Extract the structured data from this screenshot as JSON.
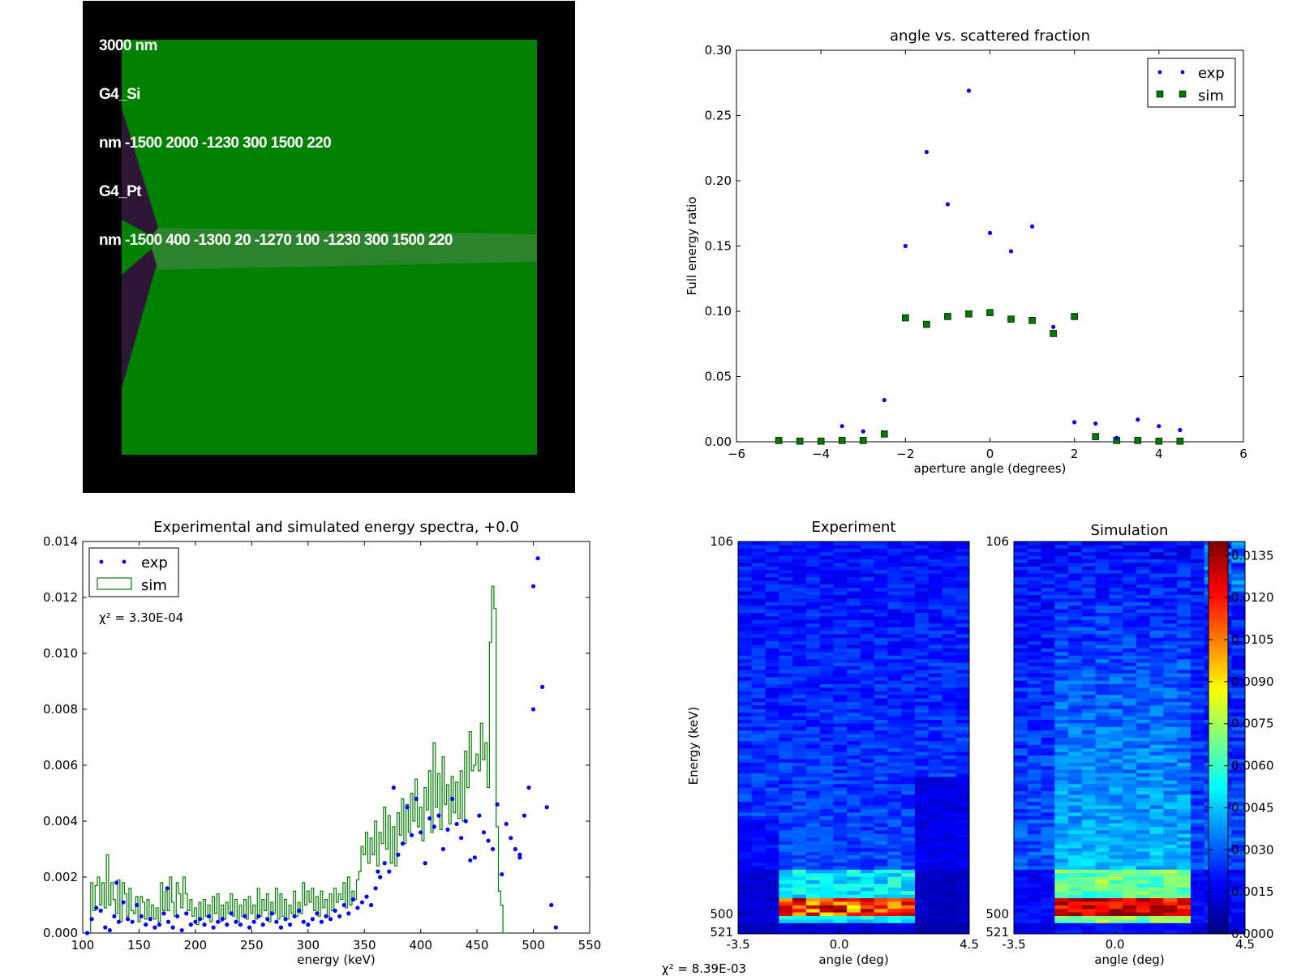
{
  "geometry_view": {
    "lines": [
      "3000 nm",
      "G4_Si",
      "nm -1500 2000 -1230 300 1500 220",
      "G4_Pt",
      "nm -1500 400 -1300 20 -1270 100 -1230 300 1500 220"
    ],
    "colors": {
      "background": "#000000",
      "silicon": "#008000",
      "platinum": "#2e1636",
      "beam": "#2b832b"
    }
  },
  "chi2_overall": "χ² = 8.39E-03",
  "chart_data": [
    {
      "id": "angle-scatter",
      "type": "scatter",
      "title": "angle vs. scattered fraction",
      "xlabel": "aperture angle (degrees)",
      "ylabel": "Full energy ratio",
      "xlim": [
        -6,
        6
      ],
      "ylim": [
        0,
        0.3
      ],
      "xticks": [
        "−6",
        "−4",
        "−2",
        "0",
        "2",
        "4",
        "6"
      ],
      "yticks": [
        "0.00",
        "0.05",
        "0.10",
        "0.15",
        "0.20",
        "0.25",
        "0.30"
      ],
      "legend": {
        "placement": "top-right",
        "entries": [
          "exp",
          "sim"
        ]
      },
      "grid": false,
      "series": [
        {
          "name": "exp",
          "marker": "dot",
          "color": "#0000ff",
          "x": [
            -3.5,
            -3,
            -2.5,
            -2,
            -1.5,
            -1,
            -0.5,
            0,
            0.5,
            1,
            1.5,
            2,
            2.5,
            3,
            3.5,
            4,
            4.5
          ],
          "y": [
            0.012,
            0.008,
            0.032,
            0.15,
            0.222,
            0.182,
            0.269,
            0.16,
            0.146,
            0.165,
            0.088,
            0.015,
            0.014,
            0.003,
            0.017,
            0.012,
            0.009
          ]
        },
        {
          "name": "sim",
          "marker": "square",
          "color": "#007700",
          "x": [
            -5,
            -4.5,
            -4,
            -3.5,
            -3,
            -2.5,
            -2,
            -1.5,
            -1,
            -0.5,
            0,
            0.5,
            1,
            1.5,
            2,
            2.5,
            3,
            3.5,
            4,
            4.5
          ],
          "y": [
            0.001,
            0.0005,
            0.0005,
            0.001,
            0.001,
            0.006,
            0.095,
            0.09,
            0.096,
            0.098,
            0.099,
            0.094,
            0.093,
            0.083,
            0.096,
            0.004,
            0.001,
            0.001,
            0.0005,
            0.0005
          ]
        }
      ]
    },
    {
      "id": "energy-spectra",
      "type": "line",
      "title": "Experimental and simulated energy spectra, +0.0",
      "xlabel": "energy (keV)",
      "ylabel": "",
      "xlim": [
        100,
        550
      ],
      "ylim": [
        0,
        0.014
      ],
      "xticks": [
        "100",
        "150",
        "200",
        "250",
        "300",
        "350",
        "400",
        "450",
        "500",
        "550"
      ],
      "yticks": [
        "0.000",
        "0.002",
        "0.004",
        "0.006",
        "0.008",
        "0.010",
        "0.012",
        "0.014"
      ],
      "legend": {
        "placement": "top-left",
        "entries": [
          "exp",
          "sim"
        ]
      },
      "annotation": "χ² = 3.30E-04",
      "grid": false,
      "series": [
        {
          "name": "exp",
          "marker": "dot",
          "color": "#0000ff",
          "x": [
            104,
            108,
            112,
            116,
            120,
            124,
            128,
            132,
            136,
            140,
            144,
            148,
            152,
            156,
            160,
            164,
            168,
            172,
            176,
            180,
            184,
            188,
            192,
            196,
            200,
            204,
            208,
            212,
            216,
            220,
            224,
            228,
            232,
            236,
            240,
            244,
            248,
            252,
            256,
            260,
            264,
            268,
            272,
            276,
            280,
            284,
            288,
            292,
            296,
            300,
            304,
            308,
            312,
            316,
            320,
            324,
            328,
            332,
            336,
            340,
            344,
            348,
            352,
            356,
            360,
            364,
            368,
            372,
            376,
            380,
            384,
            388,
            392,
            396,
            400,
            404,
            408,
            412,
            416,
            420,
            424,
            428,
            432,
            436,
            440,
            444,
            448,
            452,
            456,
            460,
            464,
            468,
            472,
            476,
            480,
            484,
            488,
            492,
            496,
            500,
            504,
            508,
            512,
            516,
            520
          ],
          "y": [
            0.0,
            0.0005,
            0.0009,
            0.0008,
            0.0002,
            0.0001,
            0.0006,
            0.0004,
            0.0011,
            0.0005,
            0.0004,
            0.001,
            0.0006,
            0.0003,
            0.0005,
            0.0002,
            0.0003,
            0.0007,
            0.0004,
            0.0002,
            0.0006,
            0.0001,
            0.0007,
            0.0003,
            0.0004,
            0.0005,
            0.0003,
            0.0006,
            0.0002,
            0.0004,
            0.0005,
            0.0003,
            0.0007,
            0.0004,
            0.0003,
            0.0006,
            0.0002,
            0.0004,
            0.0006,
            0.0003,
            0.0005,
            0.0007,
            0.0004,
            0.0002,
            0.0005,
            0.0003,
            0.0006,
            0.0008,
            0.0004,
            0.0003,
            0.0005,
            0.0007,
            0.0004,
            0.0006,
            0.0005,
            0.0008,
            0.0006,
            0.001,
            0.0007,
            0.0012,
            0.0009,
            0.0011,
            0.0013,
            0.001,
            0.0016,
            0.002,
            0.0025,
            0.0022,
            0.0052,
            0.0028,
            0.0032,
            0.0045,
            0.0035,
            0.0048,
            0.0036,
            0.0025,
            0.0041,
            0.0038,
            0.0042,
            0.003,
            0.0037,
            0.0048,
            0.0039,
            0.0034,
            0.004,
            0.0026,
            0.0027,
            0.0042,
            0.0036,
            0.0033,
            0.003,
            0.0046,
            0.0021,
            0.0039,
            0.0034,
            0.003,
            0.0028,
            0.0042,
            0.0052,
            0.008,
            0.0134,
            0.0088,
            0.0045,
            0.001,
            0.0002
          ],
          "extra_points": [
            {
              "x": 130,
              "y": 0.0018
            },
            {
              "x": 175,
              "y": 0.0016
            },
            {
              "x": 362,
              "y": 0.0022
            },
            {
              "x": 500,
              "y": 0.0124
            },
            {
              "x": 488,
              "y": 0.0027
            }
          ]
        },
        {
          "name": "sim",
          "style": "step",
          "color": "#008000",
          "x_start": 107,
          "bin_width": 2,
          "y": [
            0.0018,
            0.0008,
            0.0017,
            0.002,
            0.001,
            0.0018,
            0.0009,
            0.0028,
            0.001,
            0.0018,
            0.0012,
            0.0007,
            0.0019,
            0.0004,
            0.0018,
            0.0014,
            0.0006,
            0.0016,
            0.0008,
            0.0007,
            0.0013,
            0.0004,
            0.0013,
            0.0011,
            0.0005,
            0.0012,
            0.0005,
            0.001,
            0.0005,
            0.0009,
            0.0004,
            0.0018,
            0.0008,
            0.0015,
            0.0008,
            0.002,
            0.0011,
            0.0006,
            0.0018,
            0.0014,
            0.0009,
            0.002,
            0.0014,
            0.0008,
            0.0012,
            0.0006,
            0.0009,
            0.0003,
            0.0011,
            0.0005,
            0.0012,
            0.0006,
            0.001,
            0.0004,
            0.0013,
            0.0007,
            0.0014,
            0.0004,
            0.001,
            0.0005,
            0.0011,
            0.0007,
            0.0014,
            0.0006,
            0.0012,
            0.0004,
            0.001,
            0.0006,
            0.0012,
            0.0005,
            0.0013,
            0.0007,
            0.001,
            0.0005,
            0.0016,
            0.0006,
            0.0012,
            0.0008,
            0.0014,
            0.0004,
            0.0011,
            0.0007,
            0.0016,
            0.0005,
            0.0014,
            0.0006,
            0.0012,
            0.0005,
            0.001,
            0.0007,
            0.0015,
            0.0006,
            0.0011,
            0.0007,
            0.0018,
            0.001,
            0.0015,
            0.0011,
            0.0016,
            0.0008,
            0.0013,
            0.0006,
            0.0015,
            0.0009,
            0.0012,
            0.0006,
            0.0014,
            0.0008,
            0.0016,
            0.0011,
            0.0014,
            0.0012,
            0.0018,
            0.0009,
            0.002,
            0.001,
            0.0015,
            0.0012,
            0.0019,
            0.0022,
            0.0031,
            0.0028,
            0.0036,
            0.0025,
            0.0034,
            0.0028,
            0.004,
            0.0024,
            0.0036,
            0.0032,
            0.0045,
            0.003,
            0.0042,
            0.0025,
            0.0038,
            0.0024,
            0.0043,
            0.0035,
            0.0048,
            0.0032,
            0.0046,
            0.0036,
            0.005,
            0.004,
            0.0055,
            0.0038,
            0.0045,
            0.0033,
            0.0052,
            0.0044,
            0.0058,
            0.0036,
            0.0068,
            0.0045,
            0.0057,
            0.0037,
            0.0063,
            0.0046,
            0.0053,
            0.0039,
            0.0056,
            0.0043,
            0.0054,
            0.0041,
            0.0058,
            0.004,
            0.0065,
            0.0052,
            0.0072,
            0.0058,
            0.006,
            0.0064,
            0.0058,
            0.0075,
            0.0062,
            0.0068,
            0.0052,
            0.0104,
            0.0124,
            0.0116,
            0.0038,
            0.0015,
            0.001,
            0.0,
            0.0
          ]
        }
      ]
    },
    {
      "id": "heatmap-experiment",
      "type": "heatmap",
      "title": "Experiment",
      "xlabel": "angle (deg)",
      "ylabel": "Energy (keV)",
      "xticks": [
        "-3.5",
        "0.0",
        "4.5"
      ],
      "yticks": [
        "106",
        "500",
        "521"
      ],
      "xlim": [
        -3.5,
        4.5
      ],
      "ylim": [
        106,
        521
      ],
      "grid_size": {
        "angles": 17,
        "energy_bins": 110
      },
      "profile": {
        "high_band_keV": [
          495,
          505
        ],
        "peak_value": 0.0135,
        "background_value": 0.0012
      }
    },
    {
      "id": "heatmap-simulation",
      "type": "heatmap",
      "title": "Simulation",
      "xlabel": "angle (deg)",
      "yticks": [
        "106",
        "500",
        "521"
      ],
      "xticks": [
        "-3.5",
        "0.0",
        "4.5"
      ],
      "xlim": [
        -3.5,
        4.5
      ],
      "ylim": [
        106,
        521
      ],
      "grid_size": {
        "angles": 17,
        "energy_bins": 110
      },
      "profile": {
        "high_band_keV": [
          495,
          505
        ],
        "peak_value": 0.0135,
        "background_value": 0.0012
      }
    },
    {
      "id": "colorbar",
      "type": "heatmap",
      "range": [
        0.0,
        0.014
      ],
      "ticks": [
        "0.0000",
        "0.0015",
        "0.0030",
        "0.0045",
        "0.0060",
        "0.0075",
        "0.0090",
        "0.0105",
        "0.0120",
        "0.0135"
      ],
      "colormap": "jet"
    }
  ]
}
